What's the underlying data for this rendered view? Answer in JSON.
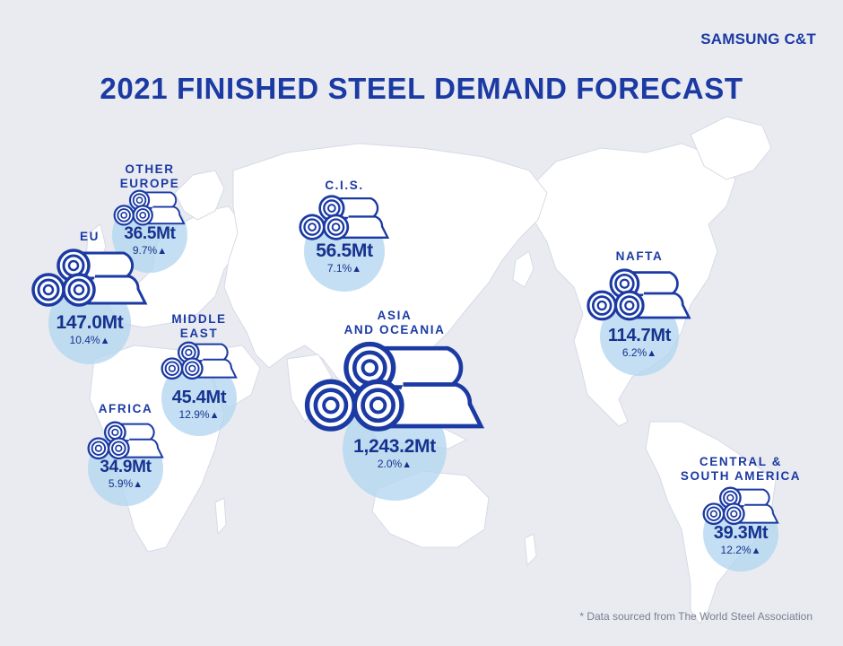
{
  "brand": "SAMSUNG C&T",
  "title": "2021 FINISHED STEEL DEMAND FORECAST",
  "source_note": "* Data sourced from The World Steel Association",
  "trend_icon": "up-triangle-icon",
  "colors": {
    "primary": "#1b3aa3",
    "bubble": "#b3d6f0",
    "land": "#ffffff",
    "background": "#e9ebf1"
  },
  "regions": [
    {
      "id": "other-europe",
      "label_lines": [
        "OTHER",
        "EUROPE"
      ],
      "demand": "36.5Mt",
      "growth": "9.7%"
    },
    {
      "id": "eu",
      "label_lines": [
        "EU"
      ],
      "demand": "147.0Mt",
      "growth": "10.4%"
    },
    {
      "id": "cis",
      "label_lines": [
        "C.I.S."
      ],
      "demand": "56.5Mt",
      "growth": "7.1%"
    },
    {
      "id": "middle-east",
      "label_lines": [
        "MIDDLE",
        "EAST"
      ],
      "demand": "45.4Mt",
      "growth": "12.9%"
    },
    {
      "id": "asia-oceania",
      "label_lines": [
        "ASIA",
        "AND OCEANIA"
      ],
      "demand": "1,243.2Mt",
      "growth": "2.0%"
    },
    {
      "id": "africa",
      "label_lines": [
        "AFRICA"
      ],
      "demand": "34.9Mt",
      "growth": "5.9%"
    },
    {
      "id": "nafta",
      "label_lines": [
        "NAFTA"
      ],
      "demand": "114.7Mt",
      "growth": "6.2%"
    },
    {
      "id": "csa",
      "label_lines": [
        "CENTRAL &",
        "SOUTH AMERICA"
      ],
      "demand": "39.3Mt",
      "growth": "12.2%"
    }
  ]
}
